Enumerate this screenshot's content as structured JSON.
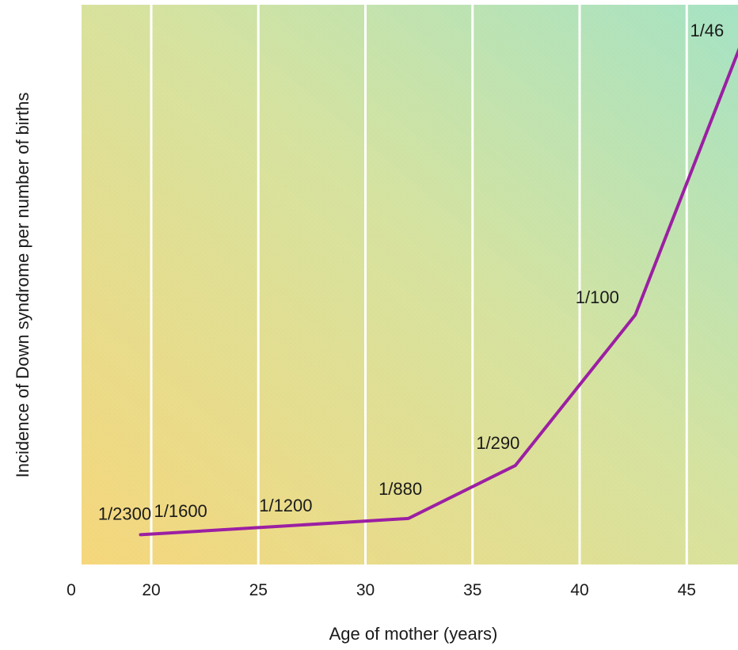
{
  "chart_data": {
    "type": "line",
    "xlabel": "Age of mother (years)",
    "ylabel": "Incidence of Down syndrome per number of births",
    "x_ticks": [
      "0",
      "20",
      "25",
      "30",
      "35",
      "40",
      "45"
    ],
    "xlim": [
      17,
      47.5
    ],
    "ylim": [
      0,
      0.0235
    ],
    "grid": "vertical",
    "series": [
      {
        "color": "#9b1fa3",
        "x": [
          19.5,
          32,
          37,
          42.6,
          47.5
        ],
        "values": [
          0.000435,
          0.00114,
          0.00345,
          0.01,
          0.0217
        ]
      }
    ],
    "data_labels": [
      {
        "text": "1/2300",
        "x": 19.5,
        "y": 0.000435
      },
      {
        "text": "1/1600",
        "x": 23.0,
        "y": 0.000625
      },
      {
        "text": "1/1200",
        "x": 27.5,
        "y": 0.000833
      },
      {
        "text": "1/880",
        "x": 32.0,
        "y": 0.00114
      },
      {
        "text": "1/290",
        "x": 37.0,
        "y": 0.00345
      },
      {
        "text": "1/100",
        "x": 42.6,
        "y": 0.01
      },
      {
        "text": "1/46",
        "x": 47.5,
        "y": 0.0217
      }
    ],
    "background_gradient": [
      "#f6d77c",
      "#a6e3c4"
    ]
  }
}
